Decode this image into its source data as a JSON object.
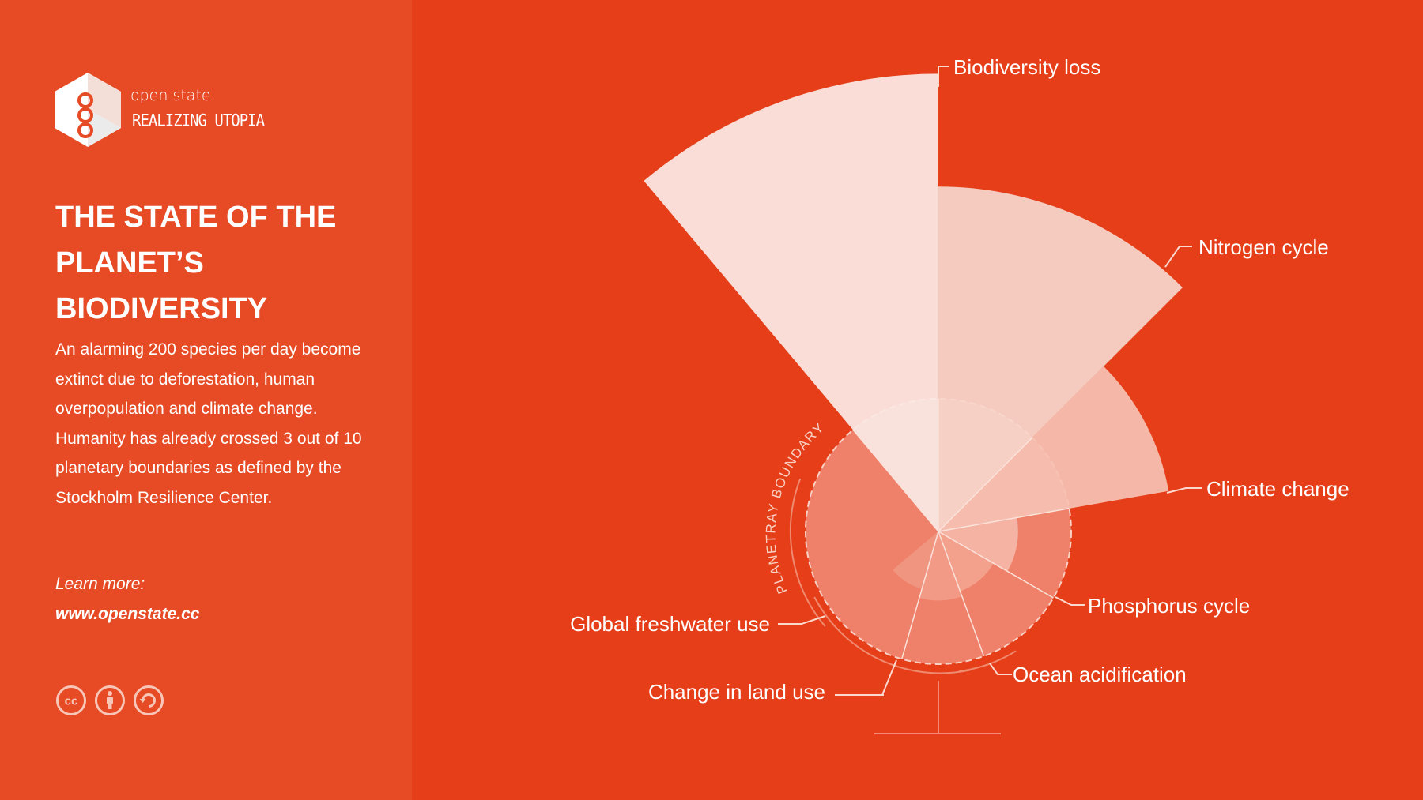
{
  "brand": {
    "name": "open state",
    "tagline": "REALIZING UTOPIA"
  },
  "title_lines": [
    "THE STATE OF THE",
    "PLANET’S",
    "BIODIVERSITY"
  ],
  "body": "An alarming 200 species per day become extinct due to deforestation, human overpopulation and climate change. Humanity has already crossed 3 out of 10 planetary boundaries as defined by the Stockholm Resilience Center.",
  "learn_more": {
    "label": "Learn more:",
    "url": "www.openstate.cc"
  },
  "license_icons": [
    "creative-commons-icon",
    "attribution-icon",
    "share-alike-icon"
  ],
  "colors": {
    "background": "#e53e18",
    "sidebar": "#e64b25",
    "text": "#ffffff",
    "boundary_zone": "#ef8069",
    "crossed_light": "#fbe9e5",
    "crossed_mid": "#f8d6cc",
    "crossed_dark": "#f6c2b4"
  },
  "chart_data": {
    "type": "polar-area",
    "boundary_label": "PLANETRAY BOUNDARY",
    "boundary_value": 1,
    "categories": [
      "Biodiversity loss",
      "Nitrogen cycle",
      "Climate change",
      "Phosphorus cycle",
      "Ocean acidification",
      "Change in land use",
      "Global freshwater use"
    ],
    "values": [
      3.45,
      2.6,
      1.76,
      0.6,
      0.48,
      0.52,
      0.45
    ],
    "unit_note": "radius relative to the planetary boundary (boundary = 1)"
  }
}
